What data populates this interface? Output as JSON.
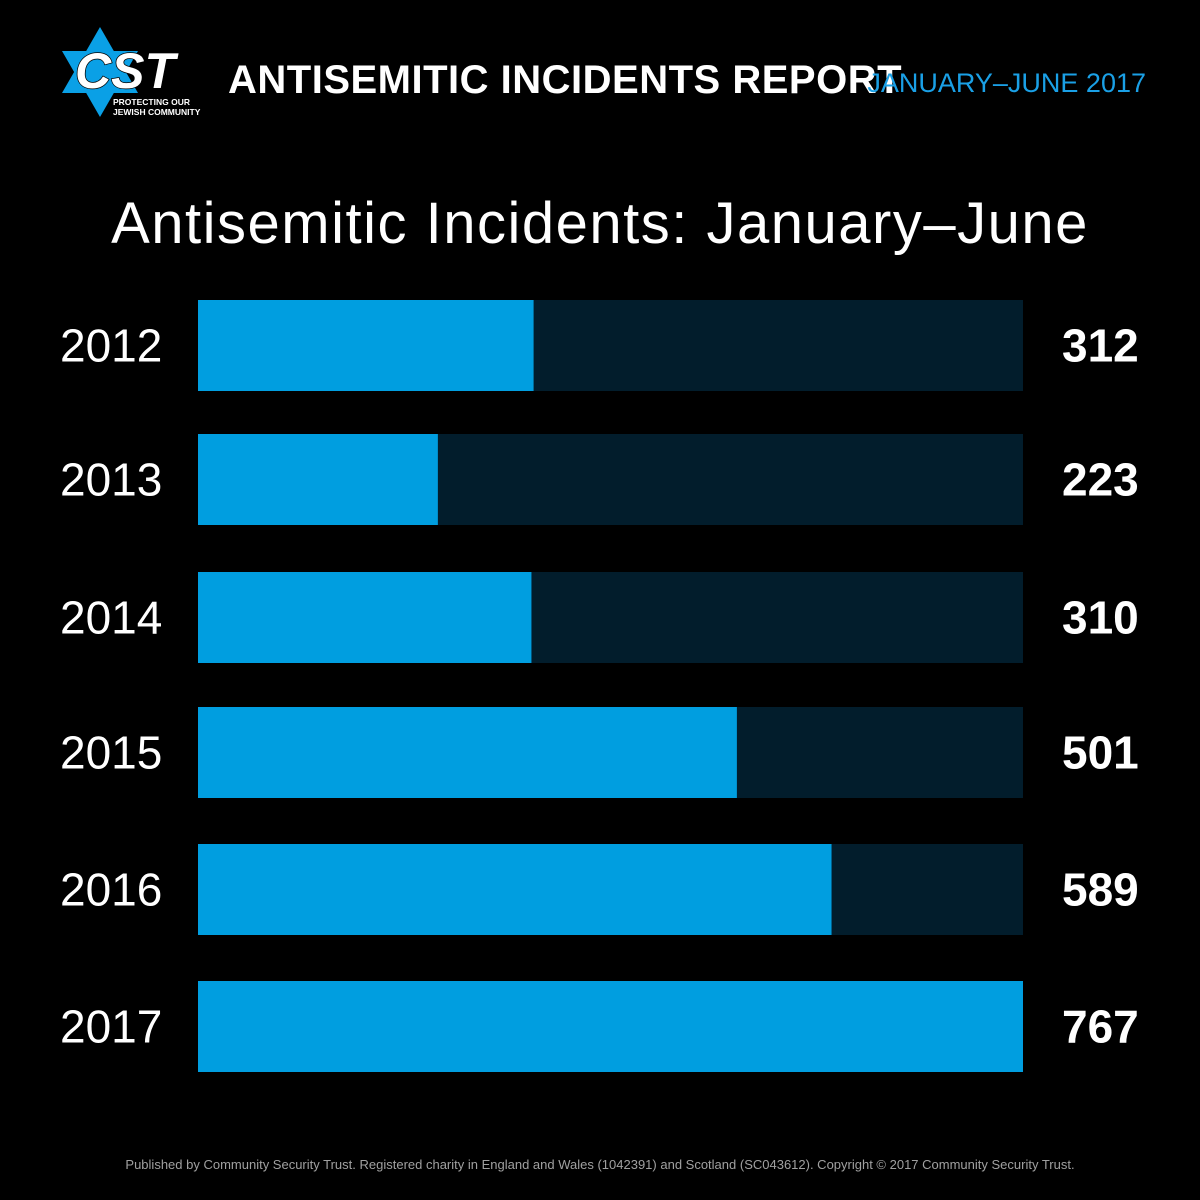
{
  "header": {
    "logo_text": "CST",
    "logo_tagline_1": "PROTECTING OUR",
    "logo_tagline_2": "JEWISH COMMUNITY",
    "title": "ANTISEMITIC INCIDENTS REPORT",
    "subtitle": "JANUARY–JUNE 2017"
  },
  "colors": {
    "background": "#000000",
    "bar_fill": "#009ee0",
    "bar_track": "#021d2c",
    "accent": "#1aa0e6",
    "text": "#ffffff"
  },
  "chart_data": {
    "type": "bar",
    "orientation": "horizontal",
    "title": "Antisemitic Incidents: January–June",
    "categories": [
      "2012",
      "2013",
      "2014",
      "2015",
      "2016",
      "2017"
    ],
    "values": [
      312,
      223,
      310,
      501,
      589,
      767
    ],
    "value_labels": [
      "312",
      "223",
      "310",
      "501",
      "589",
      "767"
    ],
    "xlim": [
      0,
      767
    ],
    "grid": false,
    "legend": "none"
  },
  "footer": {
    "text": "Published by Community Security Trust. Registered charity in England and Wales (1042391) and Scotland (SC043612). Copyright © 2017 Community Security Trust."
  }
}
